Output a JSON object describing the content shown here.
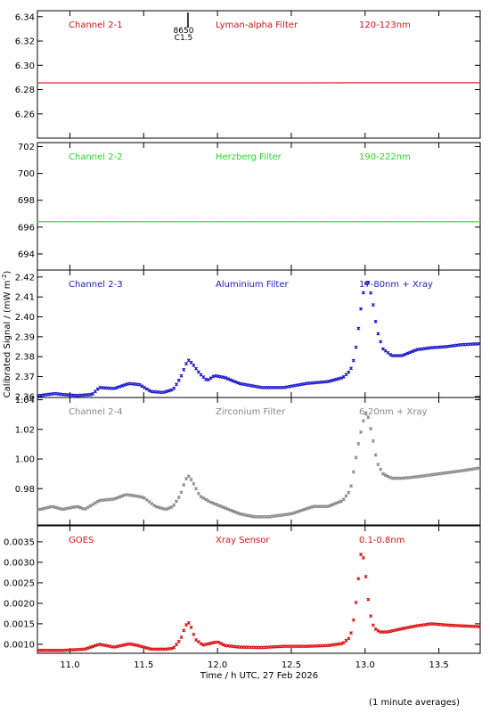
{
  "chart_data": {
    "type": "scatter",
    "ylabel": "Calibrated Signal / (mW m",
    "ylabel_sup": "-2",
    "ylabel_close": ")",
    "xlabel": "Time / h UTC, 27 Feb 2026",
    "footnote": "(1 minute averages)",
    "xlim": [
      10.78,
      13.78
    ],
    "xticks": [
      11.0,
      11.5,
      12.0,
      12.5,
      13.0,
      13.5
    ],
    "xtick_labels": [
      "11.0",
      "11.5",
      "12.0",
      "12.5",
      "13.0",
      "13.5"
    ],
    "flare_marker": {
      "x": 11.8,
      "labels": [
        "8650",
        "C1.5"
      ]
    },
    "panels": [
      {
        "channel": "Channel 2-1",
        "filter": "Lyman-alpha Filter",
        "band": "120-123nm",
        "color": "#dd1111",
        "ylim": [
          6.24,
          6.345
        ],
        "yticks": [
          6.26,
          6.28,
          6.3,
          6.32,
          6.34
        ],
        "ytick_labels": [
          "6.26",
          "6.28",
          "6.30",
          "6.32",
          "6.34"
        ],
        "x": [
          10.8,
          11.0,
          11.5,
          12.0,
          12.5,
          13.0,
          13.5,
          13.78
        ],
        "y": [
          6.2855,
          6.2855,
          6.2855,
          6.2855,
          6.2855,
          6.2856,
          6.2856,
          6.2856
        ]
      },
      {
        "channel": "Channel 2-2",
        "filter": "Herzberg Filter",
        "band": "190-222nm",
        "color": "#22dd22",
        "ylim": [
          692.8,
          702.3
        ],
        "yticks": [
          694,
          696,
          698,
          700,
          702
        ],
        "ytick_labels": [
          "694",
          "696",
          "698",
          "700",
          "702"
        ],
        "x": [
          10.8,
          11.0,
          11.5,
          12.0,
          12.5,
          13.0,
          13.5,
          13.78
        ],
        "y": [
          696.4,
          696.4,
          696.4,
          696.4,
          696.4,
          696.4,
          696.4,
          696.4
        ]
      },
      {
        "channel": "Channel 2-3",
        "filter": "Aluminium Filter",
        "band": "17-80nm + Xray",
        "color": "#1a1acc",
        "ylim": [
          2.3595,
          2.4235
        ],
        "yticks": [
          2.36,
          2.37,
          2.38,
          2.39,
          2.4,
          2.41,
          2.42
        ],
        "ytick_labels": [
          "2.36",
          "2.37",
          "2.38",
          "2.39",
          "2.40",
          "2.41",
          "2.42"
        ],
        "x": [
          10.8,
          10.9,
          10.95,
          11.05,
          11.15,
          11.2,
          11.3,
          11.4,
          11.47,
          11.55,
          11.63,
          11.7,
          11.75,
          11.78,
          11.8,
          11.83,
          11.88,
          11.93,
          11.98,
          12.05,
          12.15,
          12.3,
          12.45,
          12.6,
          12.75,
          12.85,
          12.9,
          12.93,
          12.96,
          12.98,
          13.0,
          13.02,
          13.05,
          13.08,
          13.12,
          13.18,
          13.25,
          13.35,
          13.45,
          13.55,
          13.65,
          13.78
        ],
        "y": [
          2.3605,
          2.3615,
          2.361,
          2.3605,
          2.361,
          2.3645,
          2.364,
          2.3665,
          2.366,
          2.3625,
          2.362,
          2.3635,
          2.3695,
          2.375,
          2.3785,
          2.3765,
          2.3715,
          2.368,
          2.3705,
          2.3695,
          2.3665,
          2.3645,
          2.3645,
          2.3665,
          2.3675,
          2.3695,
          2.373,
          2.38,
          2.397,
          2.409,
          2.4165,
          2.4175,
          2.4085,
          2.3935,
          2.384,
          2.3805,
          2.3805,
          2.3835,
          2.3845,
          2.385,
          2.386,
          2.3865
        ]
      },
      {
        "channel": "Channel 2-4",
        "filter": "Zirconium Filter",
        "band": "6-20nm + Xray",
        "color": "#888888",
        "ylim": [
          0.9555,
          1.0415
        ],
        "yticks": [
          0.98,
          1.0,
          1.02,
          1.04
        ],
        "ytick_labels": [
          "0.98",
          "1.00",
          "1.02",
          "1.04"
        ],
        "x": [
          10.8,
          10.88,
          10.95,
          11.05,
          11.1,
          11.2,
          11.3,
          11.38,
          11.45,
          11.5,
          11.58,
          11.65,
          11.7,
          11.75,
          11.78,
          11.8,
          11.83,
          11.88,
          11.95,
          12.05,
          12.15,
          12.25,
          12.35,
          12.5,
          12.65,
          12.75,
          12.85,
          12.9,
          12.93,
          12.95,
          12.98,
          13.0,
          13.02,
          13.05,
          13.08,
          13.12,
          13.18,
          13.25,
          13.35,
          13.5,
          13.65,
          13.78
        ],
        "y": [
          0.966,
          0.968,
          0.966,
          0.968,
          0.966,
          0.972,
          0.973,
          0.976,
          0.975,
          0.974,
          0.968,
          0.966,
          0.968,
          0.976,
          0.985,
          0.989,
          0.985,
          0.975,
          0.971,
          0.967,
          0.963,
          0.961,
          0.961,
          0.963,
          0.968,
          0.968,
          0.972,
          0.979,
          0.996,
          1.008,
          1.022,
          1.031,
          1.029,
          1.015,
          0.998,
          0.99,
          0.987,
          0.987,
          0.988,
          0.99,
          0.992,
          0.994
        ]
      },
      {
        "channel": "GOES",
        "filter": "Xray Sensor",
        "band": "0.1-0.8nm",
        "color": "#dd1111",
        "ylim": [
          0.00078,
          0.00389
        ],
        "yticks": [
          0.001,
          0.0015,
          0.002,
          0.0025,
          0.003,
          0.0035
        ],
        "ytick_labels": [
          "0.0010",
          "0.0015",
          "0.0020",
          "0.0025",
          "0.0030",
          "0.0035"
        ],
        "x": [
          10.8,
          10.95,
          11.1,
          11.2,
          11.3,
          11.4,
          11.45,
          11.55,
          11.65,
          11.7,
          11.75,
          11.78,
          11.8,
          11.82,
          11.85,
          11.9,
          11.95,
          12.0,
          12.05,
          12.15,
          12.3,
          12.45,
          12.6,
          12.75,
          12.85,
          12.9,
          12.93,
          12.95,
          12.97,
          12.99,
          13.01,
          13.03,
          13.06,
          13.1,
          13.15,
          13.25,
          13.35,
          13.45,
          13.55,
          13.65,
          13.78
        ],
        "y": [
          0.00085,
          0.00085,
          0.00088,
          0.001,
          0.00093,
          0.00101,
          0.00098,
          0.00088,
          0.00088,
          0.0009,
          0.00112,
          0.00142,
          0.00155,
          0.00143,
          0.00112,
          0.00098,
          0.00102,
          0.00106,
          0.00097,
          0.00093,
          0.00092,
          0.00095,
          0.00095,
          0.00097,
          0.00102,
          0.00118,
          0.00175,
          0.0024,
          0.0032,
          0.0031,
          0.0025,
          0.0018,
          0.0014,
          0.0013,
          0.0013,
          0.00138,
          0.00145,
          0.0015,
          0.00147,
          0.00145,
          0.00143
        ]
      }
    ]
  }
}
